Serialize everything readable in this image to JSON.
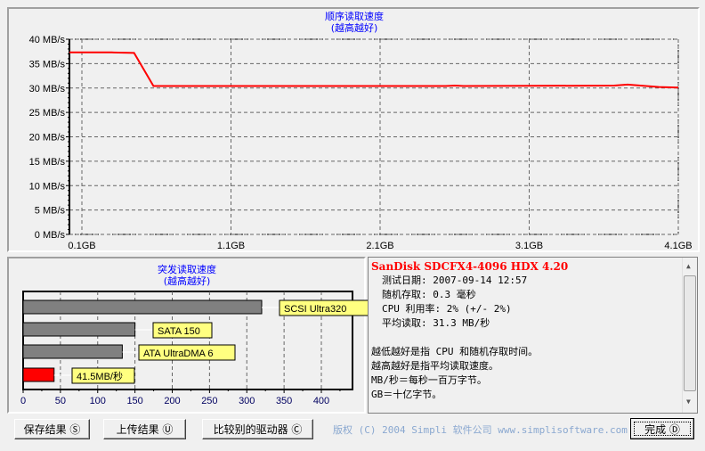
{
  "sequential": {
    "title": "顺序读取速度",
    "subtitle": "(越高越好)"
  },
  "burst": {
    "title": "突发读取速度",
    "subtitle": "(越高越好)"
  },
  "chart_data": [
    {
      "type": "line",
      "title": "顺序读取速度",
      "subtitle": "(越高越好)",
      "xlim": [
        0.016,
        4.1
      ],
      "ylim": [
        0,
        40
      ],
      "x_ticks": [
        "0.1GB",
        "1.1GB",
        "2.1GB",
        "3.1GB",
        "4.1GB"
      ],
      "x_tick_values": [
        0.1,
        1.1,
        2.1,
        3.1,
        4.1
      ],
      "y_ticks": [
        "0 MB/s",
        "5 MB/s",
        "10 MB/s",
        "15 MB/s",
        "20 MB/s",
        "25 MB/s",
        "30 MB/s",
        "35 MB/s",
        "40 MB/s"
      ],
      "grid": true,
      "color": "#ff0000",
      "x": [
        0.016,
        0.3,
        0.45,
        0.58,
        2.54,
        2.6,
        2.66,
        3.67,
        3.76,
        3.97,
        4.1
      ],
      "y": [
        37.3,
        37.3,
        37.2,
        30.4,
        30.4,
        30.5,
        30.4,
        30.5,
        30.7,
        30.2,
        30.1
      ]
    },
    {
      "type": "bar",
      "orientation": "horizontal",
      "title": "突发读取速度",
      "subtitle": "(越高越好)",
      "xlim": [
        0,
        440
      ],
      "x_ticks": [
        "0",
        "50",
        "100",
        "150",
        "200",
        "250",
        "300",
        "350",
        "400"
      ],
      "grid": true,
      "categories": [
        "SCSI Ultra320",
        "SATA 150",
        "ATA UltraDMA 6",
        "41.5MB/秒"
      ],
      "values": [
        320,
        150,
        133,
        41.5
      ],
      "colors": [
        "#808080",
        "#808080",
        "#808080",
        "#ff0000"
      ]
    }
  ],
  "info": {
    "device": "SanDisk SDCFX4-4096 HDX 4.20",
    "lines": [
      "测试日期: 2007-09-14    12:57",
      "随机存取: 0.3 毫秒",
      "CPU 利用率: 2% (+/- 2%)",
      "平均读取: 31.3 MB/秒"
    ],
    "notes": [
      "越低越好是指 CPU 和随机存取时间。",
      "越高越好是指平均读取速度。",
      "MB/秒＝每秒一百万字节。",
      "GB＝十亿字节。"
    ]
  },
  "buttons": {
    "save": "保存结果 Ⓢ",
    "upload": "上传结果 Ⓤ",
    "compare": "比较别的驱动器 Ⓒ",
    "done": "完成 Ⓓ"
  },
  "copyright": "版权 (C) 2004 Simpli 软件公司 www.simplisoftware.com"
}
